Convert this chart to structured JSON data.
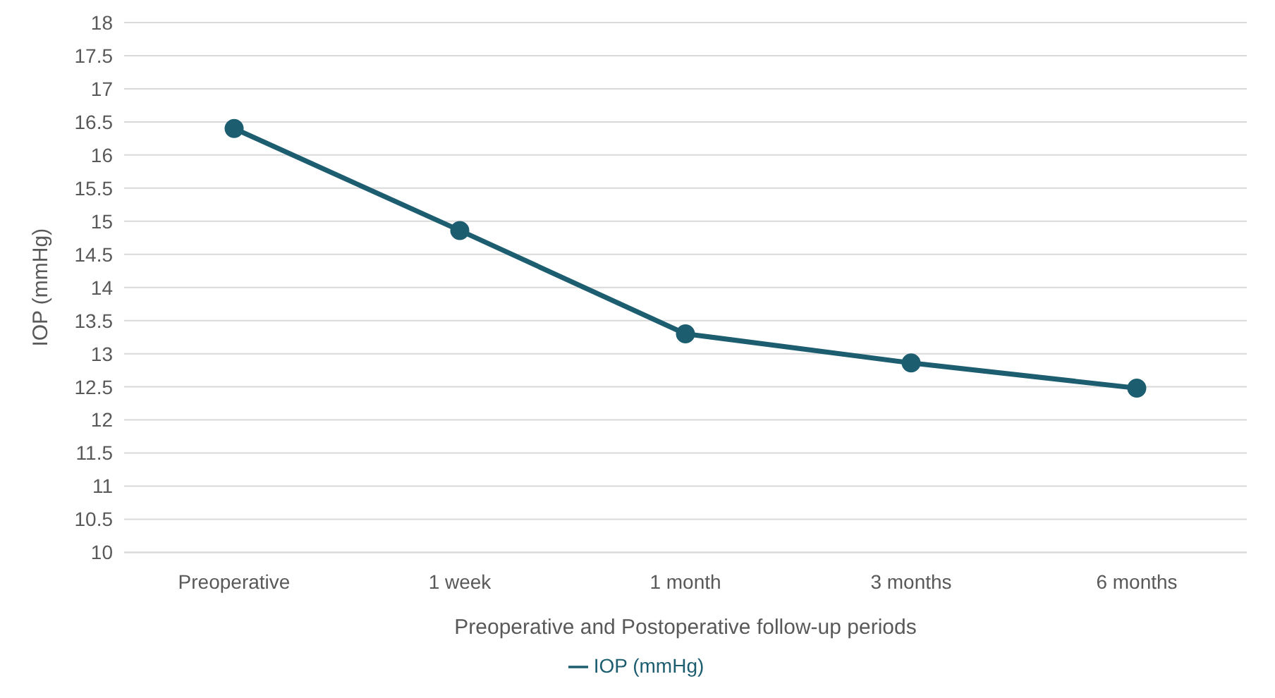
{
  "chart_data": {
    "type": "line",
    "xlabel": "Preoperative and Postoperative follow-up periods",
    "ylabel": "IOP (mmHg)",
    "categories": [
      "Preoperative",
      "1 week",
      "1 month",
      "3 months",
      "6 months"
    ],
    "series": [
      {
        "name": "IOP (mmHg)",
        "color": "#1d5d70",
        "values": [
          16.4,
          14.86,
          13.3,
          12.86,
          12.48
        ]
      }
    ],
    "ylim": [
      10,
      18
    ],
    "yticks": [
      10,
      10.5,
      11,
      11.5,
      12,
      12.5,
      13,
      13.5,
      14,
      14.5,
      15,
      15.5,
      16,
      16.5,
      17,
      17.5,
      18
    ],
    "grid": "y",
    "legend": "bottom",
    "marker": "circle",
    "line_style": "solid"
  }
}
